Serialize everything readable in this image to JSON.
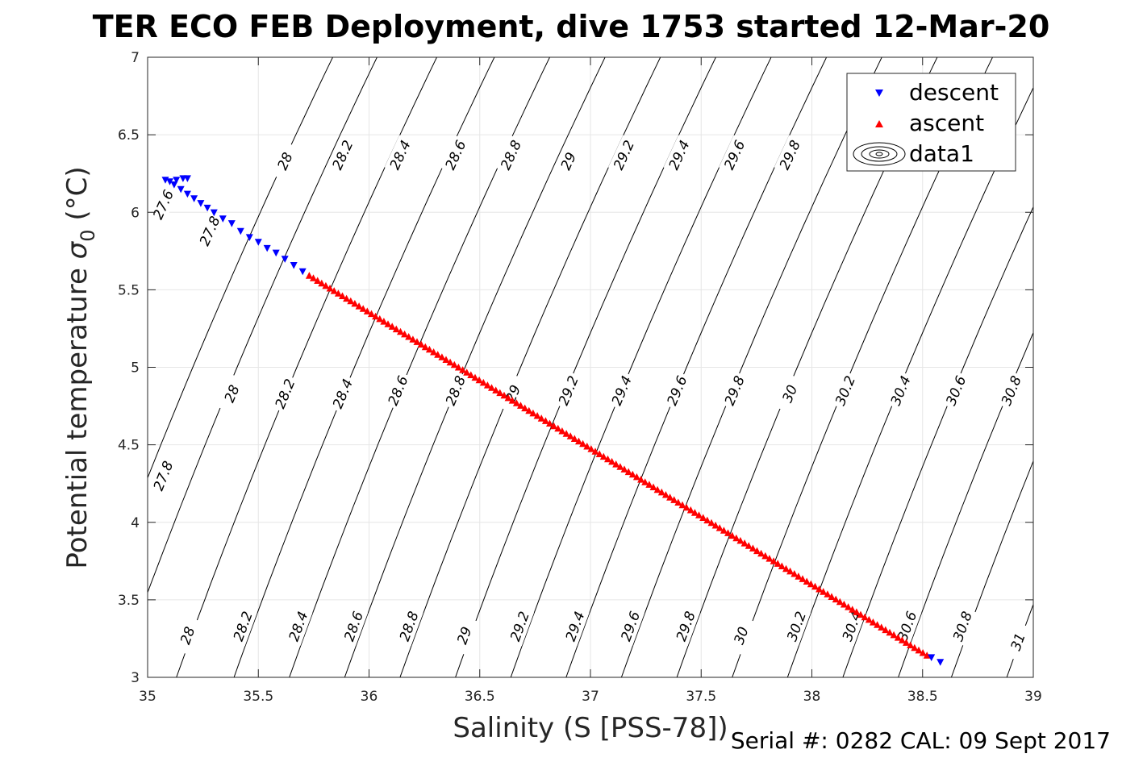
{
  "title": "TER ECO FEB Deployment, dive 1753 started 12-Mar-20",
  "footer": "Serial #: 0282  CAL: 09 Sept 2017",
  "chart_data": {
    "type": "scatter",
    "xlabel": "Salinity (S [PSS-78])",
    "ylabel_main": "Potential temperature ",
    "ylabel_sigma": "σ",
    "ylabel_sub": "0",
    "ylabel_unit": " (°C)",
    "xlim": [
      35,
      39
    ],
    "ylim": [
      3,
      7
    ],
    "xticks": [
      "35",
      "35.5",
      "36",
      "36.5",
      "37",
      "37.5",
      "38",
      "38.5",
      "39"
    ],
    "yticks": [
      "3",
      "3.5",
      "4",
      "4.5",
      "5",
      "5.5",
      "6",
      "6.5",
      "7"
    ],
    "grid": true,
    "legend_position": "top-right",
    "colors": {
      "descent": "#0000ff",
      "ascent": "#ff0000",
      "contour": "#000000"
    },
    "legend": [
      "descent",
      "ascent",
      "data1"
    ],
    "series": [
      {
        "name": "descent",
        "marker": "down-triangle",
        "points": [
          [
            35.08,
            6.21
          ],
          [
            35.1,
            6.2
          ],
          [
            35.13,
            6.21
          ],
          [
            35.16,
            6.22
          ],
          [
            35.18,
            6.22
          ],
          [
            35.12,
            6.18
          ],
          [
            35.15,
            6.15
          ],
          [
            35.18,
            6.12
          ],
          [
            35.21,
            6.09
          ],
          [
            35.24,
            6.06
          ],
          [
            35.27,
            6.03
          ],
          [
            35.3,
            6.0
          ],
          [
            35.34,
            5.96
          ],
          [
            35.38,
            5.93
          ],
          [
            35.42,
            5.88
          ],
          [
            35.46,
            5.84
          ],
          [
            35.5,
            5.81
          ],
          [
            35.54,
            5.77
          ],
          [
            35.58,
            5.74
          ],
          [
            35.62,
            5.7
          ],
          [
            35.66,
            5.66
          ],
          [
            35.7,
            5.62
          ],
          [
            38.58,
            3.1
          ],
          [
            38.54,
            3.13
          ]
        ]
      },
      {
        "name": "ascent",
        "marker": "up-triangle",
        "x_range": [
          35.73,
          38.52
        ],
        "y_range": [
          5.59,
          3.14
        ],
        "count": 150
      }
    ],
    "contours": [
      {
        "level": "27.6",
        "x3": 34.66,
        "labels": [
          [
            35.07,
            6.05
          ]
        ]
      },
      {
        "level": "27.8",
        "x3": 34.86,
        "labels": [
          [
            35.28,
            5.88
          ],
          [
            35.07,
            4.3
          ]
        ]
      },
      {
        "level": "28",
        "x3": 35.13,
        "labels": [
          [
            35.62,
            6.33
          ],
          [
            35.38,
            4.83
          ],
          [
            35.18,
            3.27
          ]
        ]
      },
      {
        "level": "28.2",
        "x3": 35.39,
        "labels": [
          [
            35.88,
            6.37
          ],
          [
            35.62,
            4.83
          ],
          [
            35.43,
            3.33
          ]
        ]
      },
      {
        "level": "28.4",
        "x3": 35.64,
        "labels": [
          [
            36.14,
            6.37
          ],
          [
            35.88,
            4.83
          ],
          [
            35.68,
            3.33
          ]
        ]
      },
      {
        "level": "28.6",
        "x3": 35.89,
        "labels": [
          [
            36.39,
            6.37
          ],
          [
            36.13,
            4.85
          ],
          [
            35.93,
            3.33
          ]
        ]
      },
      {
        "level": "28.8",
        "x3": 36.14,
        "labels": [
          [
            36.64,
            6.37
          ],
          [
            36.39,
            4.85
          ],
          [
            36.18,
            3.33
          ]
        ]
      },
      {
        "level": "29",
        "x3": 36.39,
        "labels": [
          [
            36.9,
            6.33
          ],
          [
            36.65,
            4.83
          ],
          [
            36.43,
            3.27
          ]
        ]
      },
      {
        "level": "29.2",
        "x3": 36.64,
        "labels": [
          [
            37.15,
            6.37
          ],
          [
            36.9,
            4.85
          ],
          [
            36.68,
            3.33
          ]
        ]
      },
      {
        "level": "29.4",
        "x3": 36.89,
        "labels": [
          [
            37.4,
            6.37
          ],
          [
            37.14,
            4.85
          ],
          [
            36.93,
            3.33
          ]
        ]
      },
      {
        "level": "29.6",
        "x3": 37.14,
        "labels": [
          [
            37.65,
            6.37
          ],
          [
            37.39,
            4.85
          ],
          [
            37.18,
            3.33
          ]
        ]
      },
      {
        "level": "29.8",
        "x3": 37.39,
        "labels": [
          [
            37.9,
            6.37
          ],
          [
            37.65,
            4.85
          ],
          [
            37.43,
            3.33
          ]
        ]
      },
      {
        "level": "30",
        "x3": 37.64,
        "labels": [
          [
            37.9,
            4.83
          ],
          [
            37.68,
            3.27
          ]
        ]
      },
      {
        "level": "30.2",
        "x3": 37.89,
        "labels": [
          [
            38.15,
            4.85
          ],
          [
            37.93,
            3.33
          ]
        ]
      },
      {
        "level": "30.4",
        "x3": 38.14,
        "labels": [
          [
            38.4,
            4.85
          ],
          [
            38.18,
            3.33
          ]
        ]
      },
      {
        "level": "30.6",
        "x3": 38.39,
        "labels": [
          [
            38.65,
            4.85
          ],
          [
            38.43,
            3.33
          ]
        ]
      },
      {
        "level": "30.8",
        "x3": 38.63,
        "labels": [
          [
            38.9,
            4.85
          ],
          [
            38.68,
            3.33
          ]
        ]
      },
      {
        "level": "31",
        "x3": 38.88,
        "labels": [
          [
            38.93,
            3.23
          ]
        ]
      }
    ]
  }
}
